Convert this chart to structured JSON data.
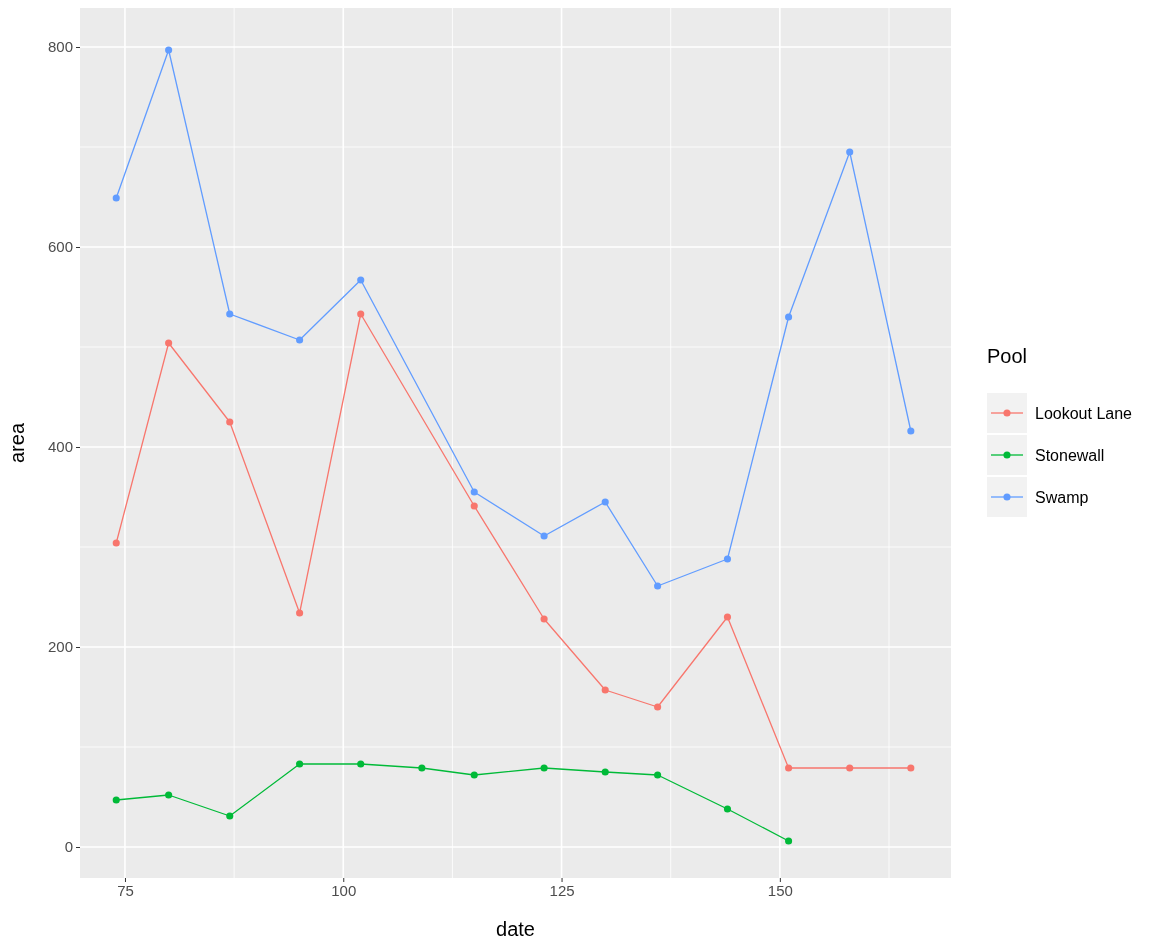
{
  "chart_data": {
    "type": "line",
    "xlabel": "date",
    "ylabel": "area",
    "legend_title": "Pool",
    "legend": "right",
    "grid": true,
    "marker": "circle",
    "line_style": "solid",
    "xlim": [
      69.85,
      169.6
    ],
    "ylim": [
      -31,
      839
    ],
    "xticks": [
      75,
      {
        "value": 87.5,
        "label": null
      },
      100,
      {
        "value": 112.5,
        "label": null
      },
      125,
      {
        "value": 137.5,
        "label": null
      },
      150,
      {
        "value": 162.5,
        "label": null
      }
    ],
    "yticks": [
      0,
      {
        "value": 100,
        "label": null
      },
      200,
      {
        "value": 300,
        "label": null
      },
      400,
      {
        "value": 500,
        "label": null
      },
      600,
      {
        "value": 700,
        "label": null
      },
      800
    ],
    "series": [
      {
        "name": "Lookout Lane",
        "color": "#f8766d",
        "x": [
          74,
          80,
          87,
          95,
          102,
          115,
          123,
          130,
          136,
          144,
          151,
          158,
          165
        ],
        "values": [
          304,
          504,
          425,
          234,
          533,
          341,
          228,
          157,
          140,
          230,
          79,
          79,
          79
        ]
      },
      {
        "name": "Stonewall",
        "color": "#00ba38",
        "x": [
          74,
          80,
          87,
          95,
          102,
          109,
          115,
          123,
          130,
          136,
          144,
          151
        ],
        "values": [
          47,
          52,
          31,
          83,
          83,
          79,
          72,
          79,
          75,
          72,
          38,
          6
        ]
      },
      {
        "name": "Swamp",
        "color": "#619cff",
        "x": [
          74,
          80,
          87,
          95,
          102,
          115,
          123,
          130,
          136,
          144,
          151,
          158,
          165
        ],
        "values": [
          649,
          797,
          533,
          507,
          567,
          355,
          311,
          345,
          261,
          288,
          530,
          695,
          416
        ]
      }
    ]
  }
}
